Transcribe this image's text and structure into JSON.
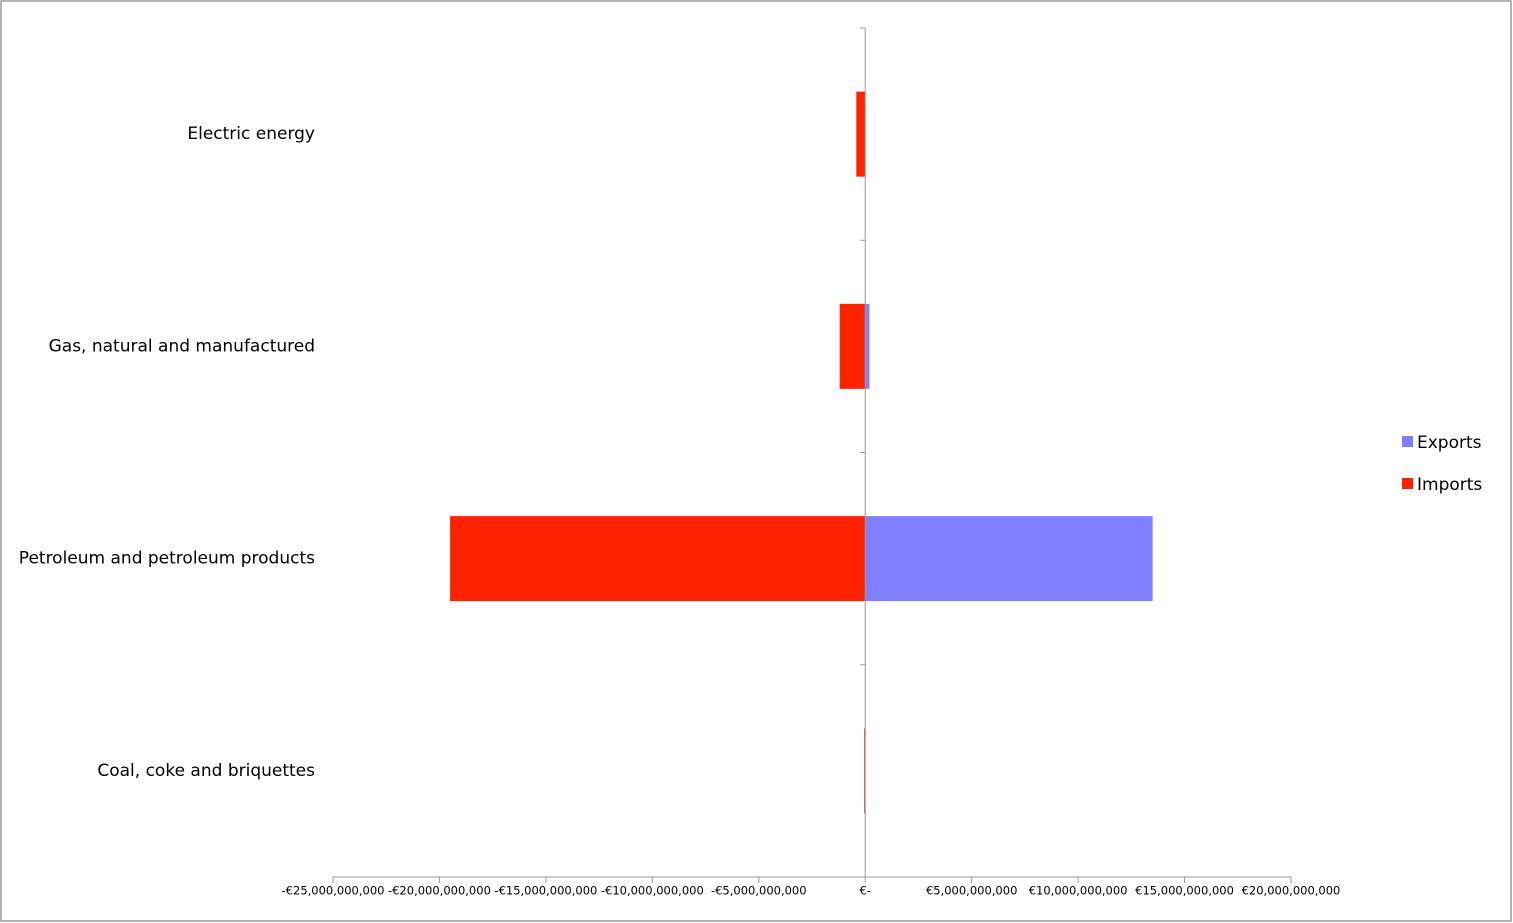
{
  "chart_data": {
    "type": "hbar",
    "categories": [
      "Electric energy",
      "Gas, natural and manufactured",
      "Petroleum and petroleum products",
      "Coal, coke and briquettes"
    ],
    "series": [
      {
        "name": "Exports",
        "color": "#7f7fff",
        "values": [
          0,
          200000000,
          13500000000,
          0
        ]
      },
      {
        "name": "Imports",
        "color": "#ff2200",
        "values": [
          -420000000,
          -1200000000,
          -19500000000,
          -50000000
        ]
      }
    ],
    "xlim": [
      -25000000000,
      20000000000
    ],
    "xticks": [
      {
        "value": -25000000000,
        "label": "-€25,000,000,000"
      },
      {
        "value": -20000000000,
        "label": "-€20,000,000,000"
      },
      {
        "value": -15000000000,
        "label": "-€15,000,000,000"
      },
      {
        "value": -10000000000,
        "label": "-€10,000,000,000"
      },
      {
        "value": -5000000000,
        "label": "-€5,000,000,000"
      },
      {
        "value": 0,
        "label": "€-"
      },
      {
        "value": 5000000000,
        "label": "€5,000,000,000"
      },
      {
        "value": 10000000000,
        "label": "€10,000,000,000"
      },
      {
        "value": 15000000000,
        "label": "€15,000,000,000"
      },
      {
        "value": 20000000000,
        "label": "€20,000,000,000"
      }
    ],
    "legend": "right"
  }
}
